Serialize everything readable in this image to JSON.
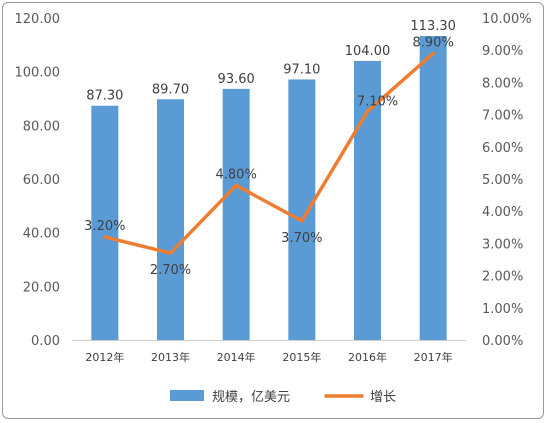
{
  "chart_data": {
    "type": "bar",
    "categories": [
      "2012年",
      "2013年",
      "2014年",
      "2015年",
      "2016年",
      "2017年"
    ],
    "series": [
      {
        "name": "规模，亿美元",
        "type": "bar",
        "axis": "left",
        "color": "#5b9bd5",
        "values": [
          87.3,
          89.7,
          93.6,
          97.1,
          104.0,
          113.3
        ],
        "labels": [
          "87.30",
          "89.70",
          "93.60",
          "97.10",
          "104.00",
          "113.30"
        ]
      },
      {
        "name": "增长",
        "type": "line",
        "axis": "right",
        "color": "#ed7d31",
        "values": [
          3.2,
          2.7,
          4.8,
          3.7,
          7.1,
          8.9
        ],
        "labels": [
          "3.20%",
          "2.70%",
          "4.80%",
          "3.70%",
          "7.10%",
          "8.90%"
        ]
      }
    ],
    "ylim": [
      0,
      120
    ],
    "y_ticks": [
      "0.00",
      "20.00",
      "40.00",
      "60.00",
      "80.00",
      "100.00",
      "120.00"
    ],
    "y2lim": [
      0,
      10
    ],
    "y2_ticks": [
      "0.00%",
      "1.00%",
      "2.00%",
      "3.00%",
      "4.00%",
      "5.00%",
      "6.00%",
      "7.00%",
      "8.00%",
      "9.00%",
      "10.00%"
    ],
    "grid": false,
    "legend_position": "bottom"
  }
}
